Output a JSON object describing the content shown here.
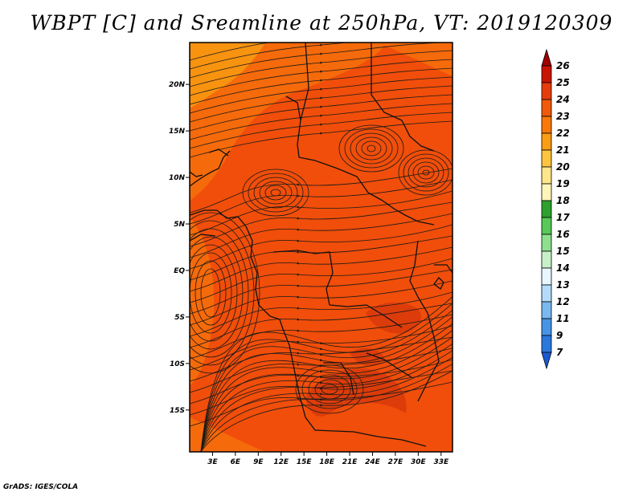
{
  "title": "WBPT [C] and Sreamline at 250hPa, VT: 2019120309",
  "footer": "GrADS: IGES/COLA",
  "map": {
    "x_ticks": [
      "3E",
      "6E",
      "9E",
      "12E",
      "15E",
      "18E",
      "21E",
      "24E",
      "27E",
      "30E",
      "33E"
    ],
    "y_ticks": [
      "20N",
      "15N",
      "10N",
      "5N",
      "EQ",
      "5S",
      "10S",
      "15S"
    ],
    "lon_range": [
      0,
      34.5
    ],
    "lat_range": [
      -19.5,
      24.5
    ],
    "field_colors": {
      "deep": "#dc3c0a",
      "main": "#f04e0a",
      "warm": "#f56a0a",
      "light": "#f89310"
    },
    "streamline_color": "#1a1a1a",
    "border_color": "#111111"
  },
  "colorbar": {
    "labels": [
      "26",
      "25",
      "24",
      "23",
      "22",
      "21",
      "20",
      "19",
      "18",
      "17",
      "16",
      "15",
      "14",
      "13",
      "12",
      "11",
      "9",
      "7"
    ],
    "colors": [
      "#a00000",
      "#c81400",
      "#e63c0a",
      "#f05a0a",
      "#fa780a",
      "#f89d14",
      "#fcc440",
      "#fde68a",
      "#fff5b8",
      "#2ea02e",
      "#58c858",
      "#8ee08e",
      "#c8f0c8",
      "#e8f6ff",
      "#b4dcfa",
      "#7ab8f0",
      "#4694e6",
      "#2a78dc",
      "#1a5ad0"
    ]
  }
}
